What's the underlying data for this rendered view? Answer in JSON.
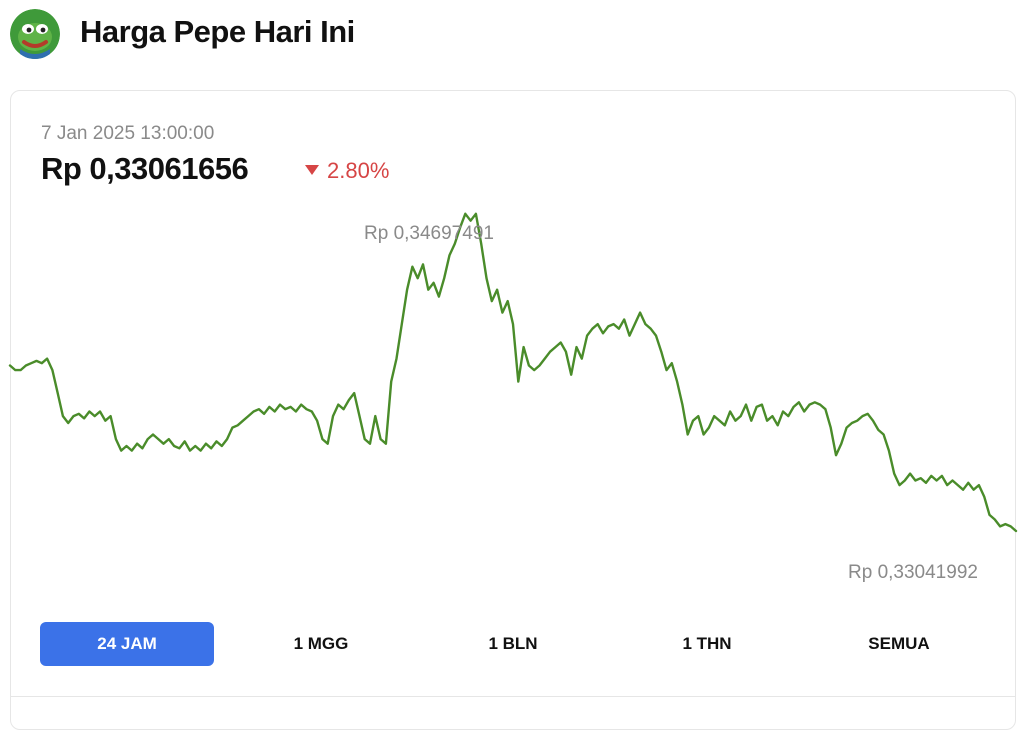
{
  "header": {
    "title": "Harga Pepe Hari Ini",
    "logo_icon": "pepe-frog-icon"
  },
  "price_panel": {
    "timestamp": "7 Jan 2025 13:00:00",
    "price": "Rp 0,33061656",
    "change": "2.80%",
    "change_direction": "down",
    "change_color": "#d64545"
  },
  "chart_data": {
    "type": "line",
    "title": "",
    "xlabel": "",
    "ylabel": "",
    "line_color": "#4a8c2a",
    "grid": false,
    "axes_visible": false,
    "max_label": "Rp 0,34697491",
    "min_label": "Rp 0,33041992",
    "ylim": [
      0.33,
      0.3474
    ],
    "series": [
      {
        "name": "",
        "values": [
          0.3402,
          0.34,
          0.34,
          0.3402,
          0.3403,
          0.3404,
          0.3403,
          0.3405,
          0.34,
          0.339,
          0.338,
          0.3377,
          0.338,
          0.3381,
          0.3379,
          0.3382,
          0.338,
          0.3382,
          0.3378,
          0.338,
          0.337,
          0.3365,
          0.3367,
          0.3365,
          0.3368,
          0.3366,
          0.337,
          0.3372,
          0.337,
          0.3368,
          0.337,
          0.3367,
          0.3366,
          0.3369,
          0.3365,
          0.3367,
          0.3365,
          0.3368,
          0.3366,
          0.3369,
          0.3367,
          0.337,
          0.3375,
          0.3376,
          0.3378,
          0.338,
          0.3382,
          0.3383,
          0.3381,
          0.3384,
          0.3382,
          0.3385,
          0.3383,
          0.3384,
          0.3382,
          0.3385,
          0.3383,
          0.3382,
          0.3378,
          0.337,
          0.3368,
          0.338,
          0.3385,
          0.3383,
          0.3387,
          0.339,
          0.338,
          0.337,
          0.3368,
          0.338,
          0.337,
          0.3368,
          0.3395,
          0.3405,
          0.342,
          0.3435,
          0.3445,
          0.344,
          0.3446,
          0.3435,
          0.3438,
          0.3432,
          0.344,
          0.345,
          0.3455,
          0.3462,
          0.3468,
          0.3465,
          0.3468,
          0.3455,
          0.344,
          0.343,
          0.3435,
          0.3425,
          0.343,
          0.342,
          0.3395,
          0.341,
          0.3402,
          0.34,
          0.3402,
          0.3405,
          0.3408,
          0.341,
          0.3412,
          0.3408,
          0.3398,
          0.341,
          0.3405,
          0.3415,
          0.3418,
          0.342,
          0.3416,
          0.3419,
          0.342,
          0.3418,
          0.3422,
          0.3415,
          0.342,
          0.3425,
          0.342,
          0.3418,
          0.3415,
          0.3408,
          0.34,
          0.3403,
          0.3395,
          0.3385,
          0.3372,
          0.3378,
          0.338,
          0.3372,
          0.3375,
          0.338,
          0.3378,
          0.3376,
          0.3382,
          0.3378,
          0.338,
          0.3385,
          0.3378,
          0.3384,
          0.3385,
          0.3378,
          0.338,
          0.3376,
          0.3382,
          0.338,
          0.3384,
          0.3386,
          0.3382,
          0.3385,
          0.3386,
          0.3385,
          0.3383,
          0.3375,
          0.3363,
          0.3368,
          0.3375,
          0.3377,
          0.3378,
          0.338,
          0.3381,
          0.3378,
          0.3374,
          0.3372,
          0.3365,
          0.3355,
          0.335,
          0.3352,
          0.3355,
          0.3352,
          0.3353,
          0.3351,
          0.3354,
          0.3352,
          0.3354,
          0.335,
          0.3352,
          0.335,
          0.3348,
          0.3351,
          0.3348,
          0.335,
          0.3345,
          0.3337,
          0.3335,
          0.3332,
          0.3333,
          0.3332,
          0.333
        ]
      }
    ]
  },
  "range_tabs": [
    {
      "label": "24 JAM",
      "active": true
    },
    {
      "label": "1 MGG",
      "active": false
    },
    {
      "label": "1 BLN",
      "active": false
    },
    {
      "label": "1 THN",
      "active": false
    },
    {
      "label": "SEMUA",
      "active": false
    }
  ],
  "colors": {
    "accent": "#3b72e8",
    "line": "#4a8c2a"
  }
}
